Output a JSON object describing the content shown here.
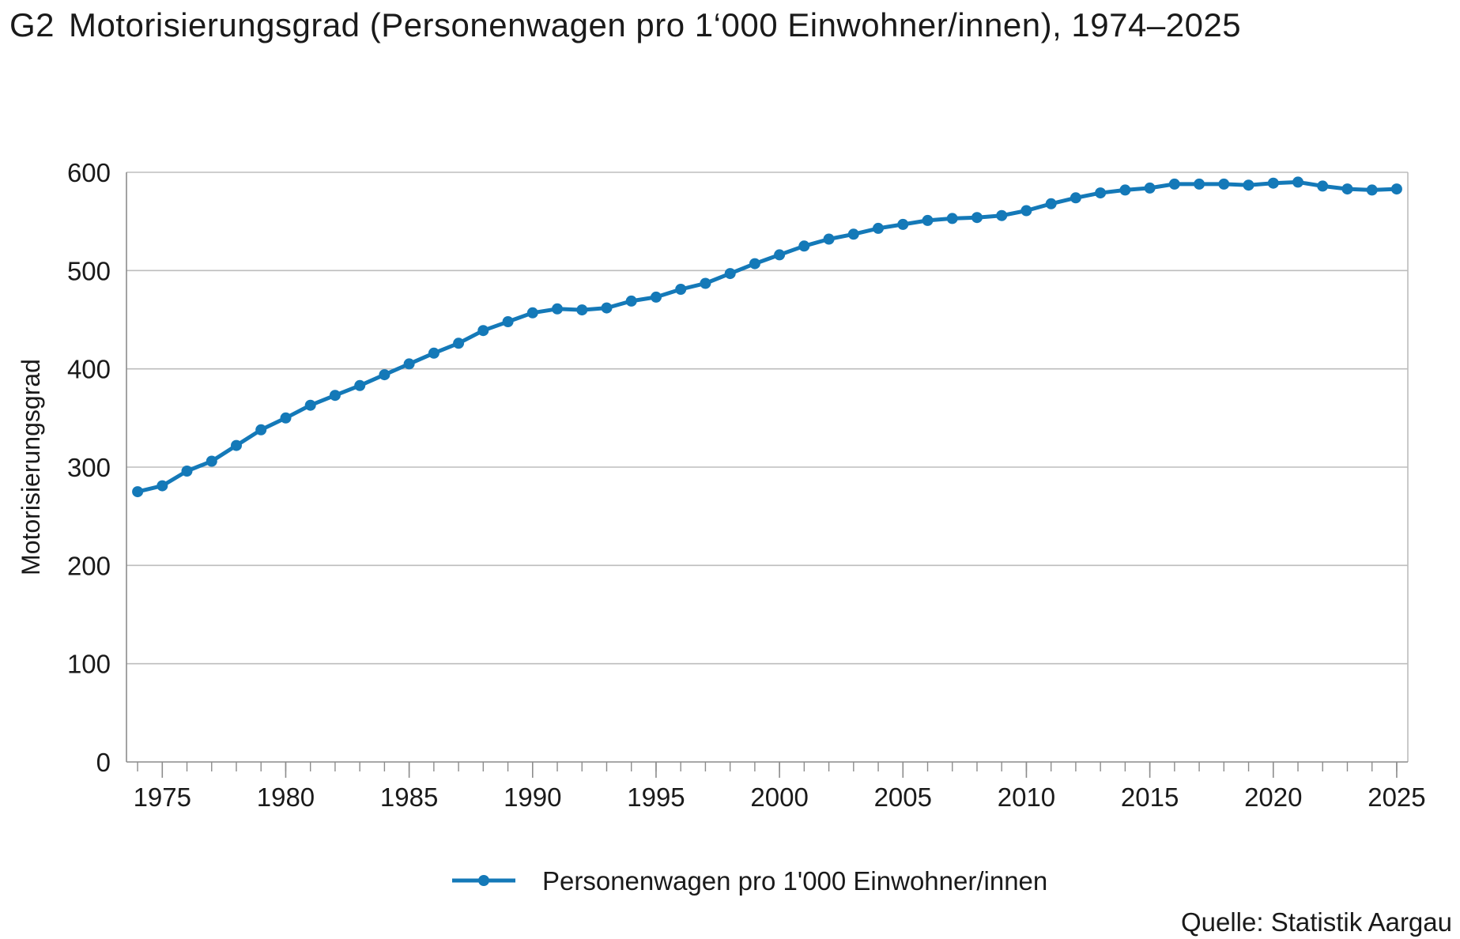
{
  "header": {
    "prefix": "G2",
    "title": "Motorisierungsgrad (Personenwagen pro 1‘000 Einwohner/innen), 1974–2025"
  },
  "source": "Quelle: Statistik Aargau",
  "colors": {
    "series": "#1479b8",
    "grid": "#bdbdbd",
    "axis": "#8c8c8c",
    "text": "#1a1a1a"
  },
  "chart_data": {
    "type": "line",
    "title": "Motorisierungsgrad (Personenwagen pro 1‘000 Einwohner/innen), 1974–2025",
    "xlabel": "",
    "ylabel": "Motorisierungsgrad",
    "xlim": [
      1974,
      2025
    ],
    "ylim": [
      0,
      600
    ],
    "x_ticks": [
      1975,
      1980,
      1985,
      1990,
      1995,
      2000,
      2005,
      2010,
      2015,
      2020,
      2025
    ],
    "y_ticks": [
      0,
      100,
      200,
      300,
      400,
      500,
      600
    ],
    "grid": "horizontal",
    "legend_position": "bottom-center",
    "x": [
      1974,
      1975,
      1976,
      1977,
      1978,
      1979,
      1980,
      1981,
      1982,
      1983,
      1984,
      1985,
      1986,
      1987,
      1988,
      1989,
      1990,
      1991,
      1992,
      1993,
      1994,
      1995,
      1996,
      1997,
      1998,
      1999,
      2000,
      2001,
      2002,
      2003,
      2004,
      2005,
      2006,
      2007,
      2008,
      2009,
      2010,
      2011,
      2012,
      2013,
      2014,
      2015,
      2016,
      2017,
      2018,
      2019,
      2020,
      2021,
      2022,
      2023,
      2024,
      2025
    ],
    "series": [
      {
        "name": "Personenwagen pro 1'000 Einwohner/innen",
        "marker": "circle",
        "values": [
          275,
          281,
          296,
          306,
          322,
          338,
          350,
          363,
          373,
          383,
          394,
          405,
          416,
          426,
          439,
          448,
          457,
          461,
          460,
          462,
          469,
          473,
          481,
          487,
          497,
          507,
          516,
          525,
          532,
          537,
          543,
          547,
          551,
          553,
          554,
          556,
          561,
          568,
          574,
          579,
          582,
          584,
          588,
          588,
          588,
          587,
          589,
          590,
          586,
          583,
          582,
          583
        ]
      }
    ]
  }
}
